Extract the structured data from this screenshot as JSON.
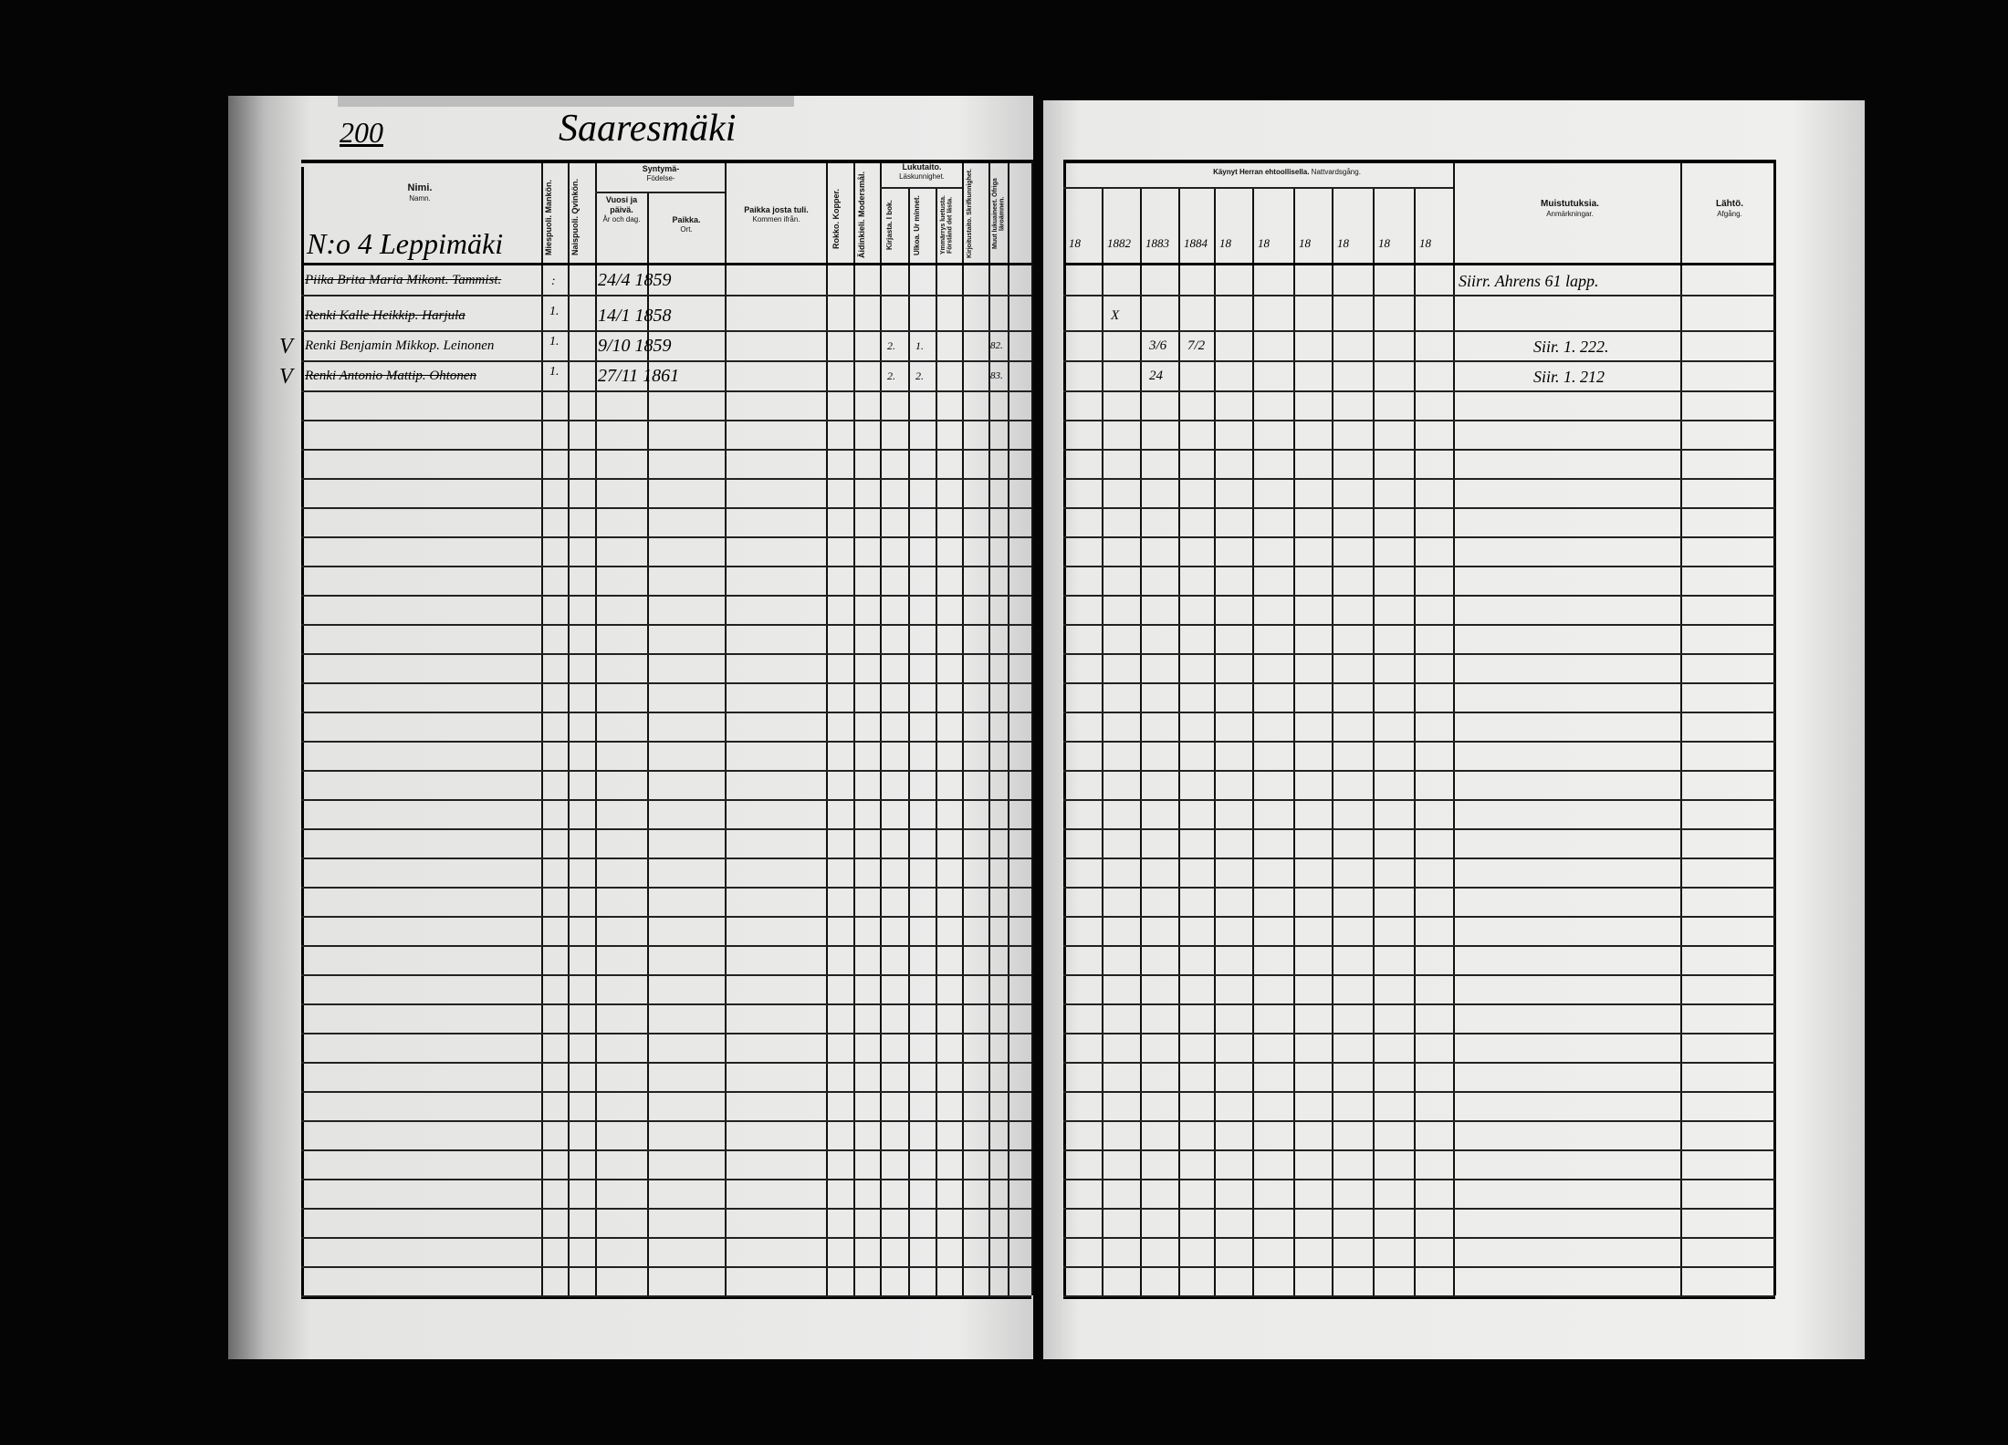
{
  "header": {
    "page_number": "200",
    "village": "Saaresmäki",
    "farm": "N:o 4 Leppimäki"
  },
  "left_columns": {
    "name": {
      "fi": "Nimi.",
      "sv": "Namn."
    },
    "male": {
      "fi": "Miespuoli.",
      "sv": "Mankön."
    },
    "female": {
      "fi": "Naispuoli.",
      "sv": "Qvinkön."
    },
    "birth": {
      "fi": "Syntymä-",
      "sv": "Födelse-"
    },
    "birth_date": {
      "fi": "Vuosi ja päivä.",
      "sv": "År och dag."
    },
    "birth_place": {
      "fi": "Paikka.",
      "sv": "Ort."
    },
    "came_from": {
      "fi": "Paikka josta tuli.",
      "sv": "Kommen ifrån."
    },
    "smallpox": {
      "fi": "Rokko.",
      "sv": "Kopper."
    },
    "mother_tongue": {
      "fi": "Äidinkieli.",
      "sv": "Modersmål."
    },
    "literacy": {
      "fi": "Lukutaito.",
      "sv": "Läskunnighet."
    },
    "from_book": {
      "fi": "Kirjasta.",
      "sv": "I bok."
    },
    "from_memory": {
      "fi": "Ulkoa.",
      "sv": "Ur minnet."
    },
    "understanding": {
      "fi": "Ymmärrys luetusta.",
      "sv": "Förstånd det lästa."
    },
    "writing": {
      "fi": "Kirjoitustaito.",
      "sv": "Skrifkunnighet."
    },
    "other_subjects": {
      "fi": "Muut lukuaineet.",
      "sv": "Öfriga läroämnen."
    }
  },
  "right_columns": {
    "communion": {
      "fi": "Käynyt Herran ehtoollisella.",
      "sv": "Nattvardsgång."
    },
    "years": [
      "18",
      "1882",
      "1883",
      "1884",
      "18",
      "18",
      "18",
      "18",
      "18",
      "18"
    ],
    "remarks": {
      "fi": "Muistutuksia.",
      "sv": "Anmärkningar."
    },
    "departure": {
      "fi": "Lähtö.",
      "sv": "Afgång."
    }
  },
  "rows": [
    {
      "name": "Piika Brita Maria Mikont. Tammist.",
      "male": "",
      "female": ":",
      "birth_date": "24/4 1859",
      "from_book": "",
      "from_memory": "",
      "other": "",
      "checkmark": "",
      "struck": true,
      "communion": {},
      "remarks": "Siirr. Ahrens 61 lapp."
    },
    {
      "name": "Renki Kalle Heikkip. Harjula",
      "male": "1.",
      "female": "",
      "birth_date": "14/1 1858",
      "from_book": "",
      "from_memory": "",
      "other": "",
      "checkmark": "",
      "struck": true,
      "communion": {
        "1882": "X"
      },
      "remarks": ""
    },
    {
      "name": "Renki Benjamin Mikkop. Leinonen",
      "male": "1.",
      "female": "",
      "birth_date": "9/10 1859",
      "from_book": "2.",
      "from_memory": "1.",
      "other": "82.",
      "checkmark": "V",
      "struck": false,
      "communion": {
        "1883": "3/6",
        "1884": "7/2"
      },
      "remarks": "Siir. 1. 222."
    },
    {
      "name": "Renki Antonio Mattip. Ohtonen",
      "male": "1.",
      "female": "",
      "birth_date": "27/11 1861",
      "from_book": "2.",
      "from_memory": "2.",
      "other": "83.",
      "checkmark": "V",
      "struck": true,
      "communion": {
        "1883": "24"
      },
      "remarks": "Siir. 1. 212"
    }
  ]
}
